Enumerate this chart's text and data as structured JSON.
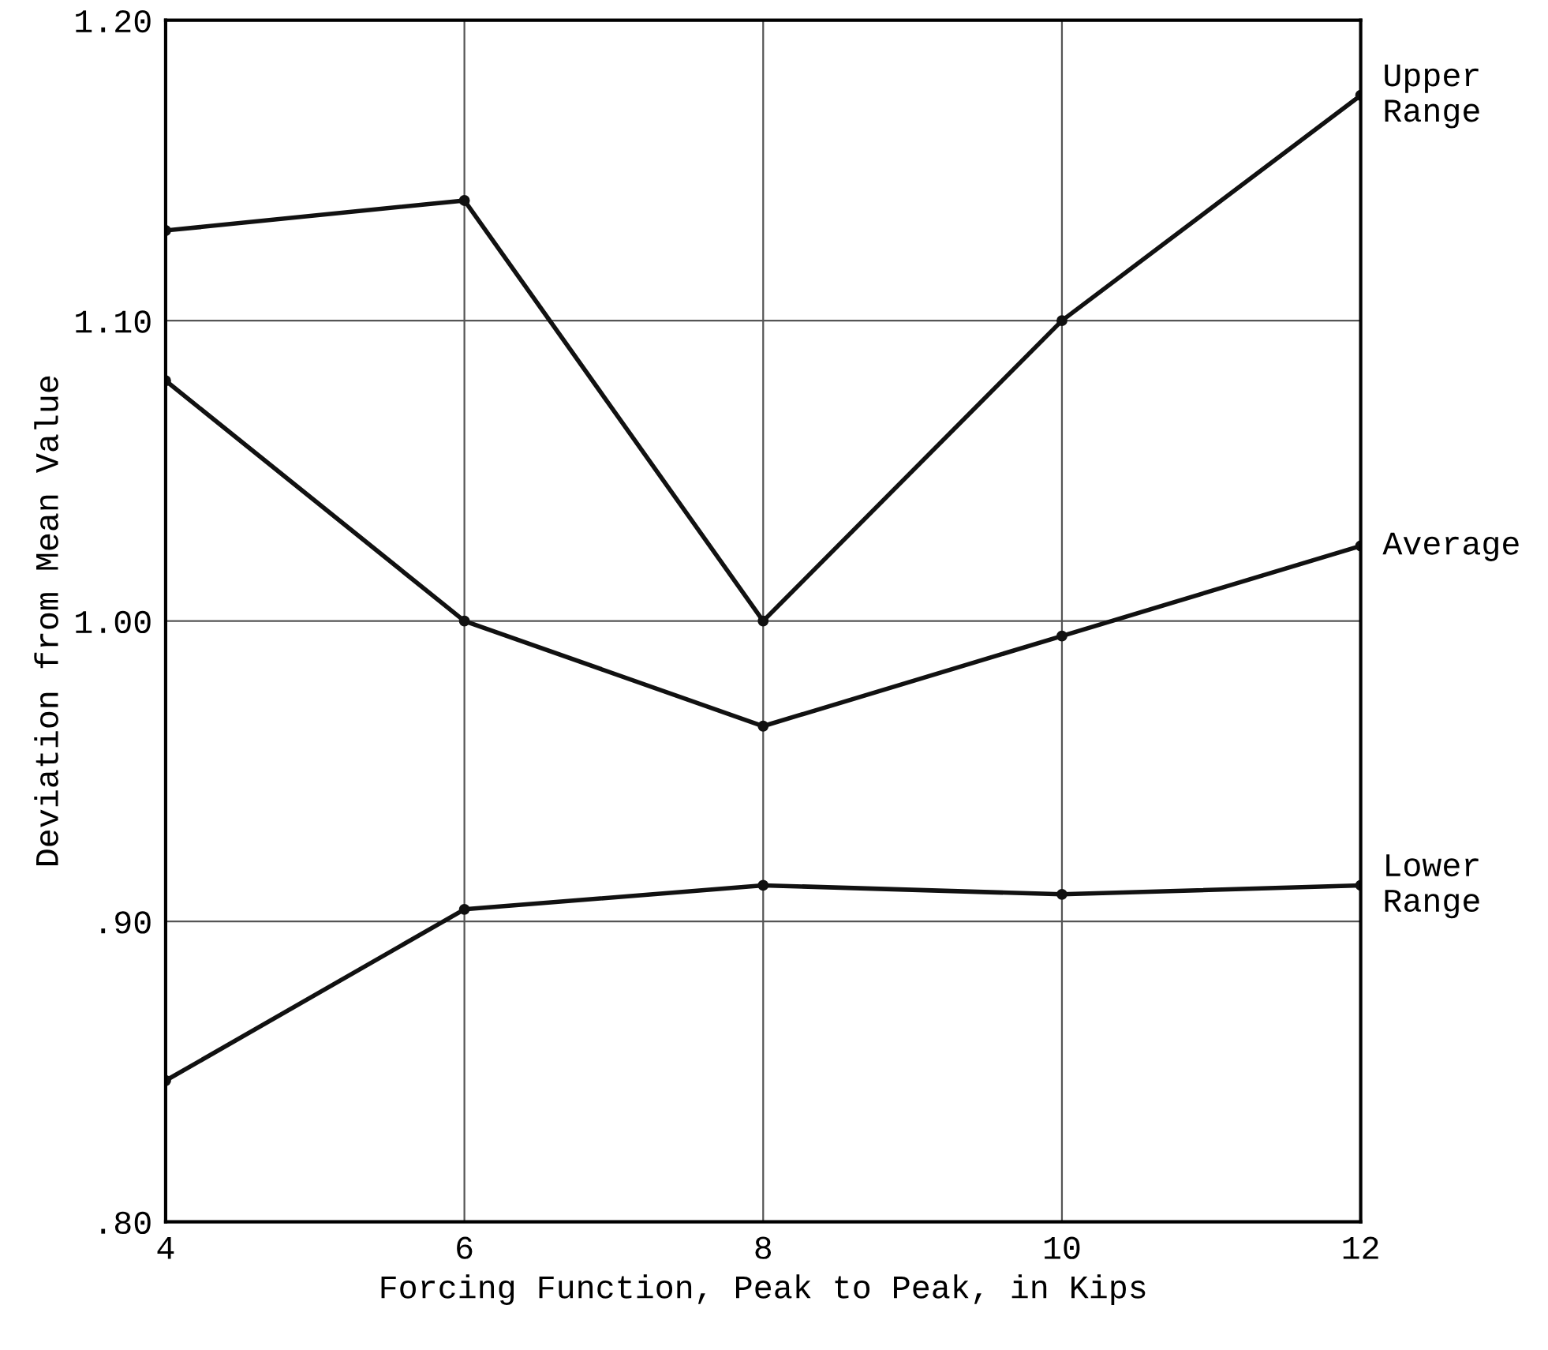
{
  "chart_data": {
    "type": "line",
    "xlabel": "Forcing Function, Peak to Peak, in Kips",
    "ylabel": "Deviation from Mean Value",
    "x": [
      4,
      6,
      8,
      10,
      12
    ],
    "series": [
      {
        "name": "Upper Range",
        "color": "#111111",
        "values": [
          1.13,
          1.14,
          1.0,
          1.1,
          1.175
        ]
      },
      {
        "name": "Average",
        "color": "#111111",
        "values": [
          1.08,
          1.0,
          0.965,
          0.995,
          1.025
        ]
      },
      {
        "name": "Lower Range",
        "color": "#111111",
        "values": [
          0.847,
          0.904,
          0.912,
          0.909,
          0.912
        ]
      }
    ],
    "xlim": [
      4,
      12
    ],
    "xticks": [
      4,
      6,
      8,
      10,
      12
    ],
    "ylim": [
      0.8,
      1.2
    ],
    "yticks": [
      {
        "value": 0.8,
        "label": ".80"
      },
      {
        "value": 0.9,
        "label": ".90"
      },
      {
        "value": 1.0,
        "label": "1.00"
      },
      {
        "value": 1.1,
        "label": "1.10"
      },
      {
        "value": 1.2,
        "label": "1.20"
      }
    ],
    "grid": true,
    "marker": "circle",
    "line_style": "solid",
    "legend": false
  }
}
